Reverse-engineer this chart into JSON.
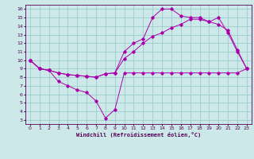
{
  "xlabel": "Windchill (Refroidissement éolien,°C)",
  "bg_color": "#cce8e8",
  "line_color": "#aa00aa",
  "grid_color": "#99cccc",
  "xlim": [
    -0.5,
    23.5
  ],
  "ylim": [
    2.5,
    16.5
  ],
  "yticks": [
    3,
    4,
    5,
    6,
    7,
    8,
    9,
    10,
    11,
    12,
    13,
    14,
    15,
    16
  ],
  "xticks": [
    0,
    1,
    2,
    3,
    4,
    5,
    6,
    7,
    8,
    9,
    10,
    11,
    12,
    13,
    14,
    15,
    16,
    17,
    18,
    19,
    20,
    21,
    22,
    23
  ],
  "line1_x": [
    0,
    1,
    2,
    3,
    4,
    5,
    6,
    7,
    8,
    9,
    10,
    11,
    12,
    13,
    14,
    15,
    16,
    17,
    18,
    19,
    20,
    21,
    22,
    23
  ],
  "line1_y": [
    10,
    9,
    8.8,
    7.5,
    7.0,
    6.5,
    6.2,
    5.2,
    3.2,
    4.2,
    8.5,
    8.5,
    8.5,
    8.5,
    8.5,
    8.5,
    8.5,
    8.5,
    8.5,
    8.5,
    8.5,
    8.5,
    8.5,
    9.0
  ],
  "line2_x": [
    0,
    1,
    2,
    3,
    4,
    5,
    6,
    7,
    8,
    9,
    10,
    11,
    12,
    13,
    14,
    15,
    16,
    17,
    18,
    19,
    20,
    21,
    22,
    23
  ],
  "line2_y": [
    10,
    9.0,
    8.8,
    8.5,
    8.3,
    8.2,
    8.1,
    8.0,
    8.4,
    8.5,
    10.2,
    11.0,
    12.0,
    12.8,
    13.2,
    13.8,
    14.2,
    14.8,
    14.8,
    14.5,
    14.2,
    13.5,
    11.2,
    9.0
  ],
  "line3_x": [
    0,
    1,
    2,
    3,
    4,
    5,
    6,
    7,
    8,
    9,
    10,
    11,
    12,
    13,
    14,
    15,
    16,
    17,
    18,
    19,
    20,
    21,
    22,
    23
  ],
  "line3_y": [
    10,
    9.0,
    8.8,
    8.5,
    8.3,
    8.2,
    8.1,
    8.0,
    8.4,
    8.5,
    11.0,
    12.0,
    12.5,
    15.0,
    16.0,
    16.0,
    15.2,
    15.0,
    15.0,
    14.5,
    15.0,
    13.2,
    11.0,
    9.0
  ]
}
